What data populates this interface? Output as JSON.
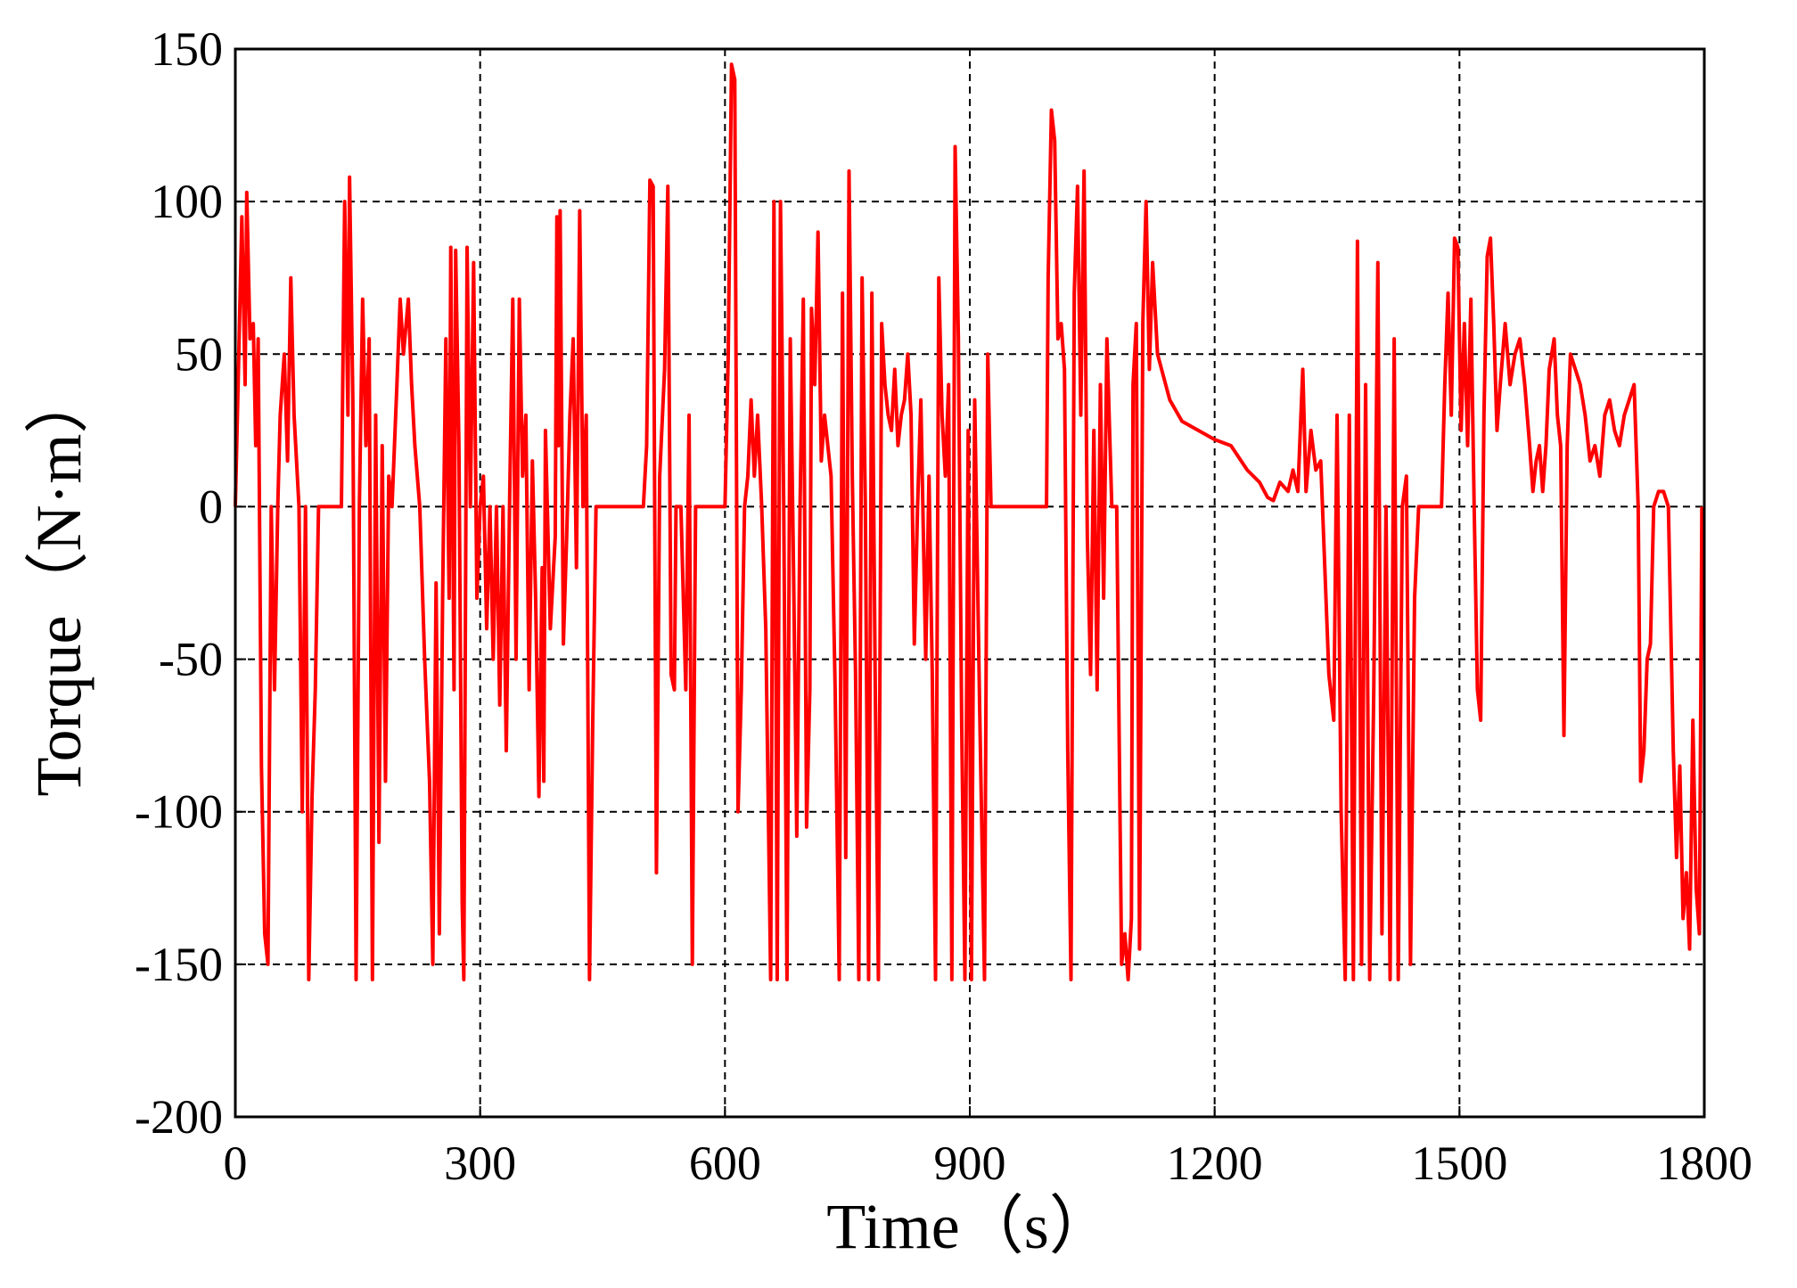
{
  "chart_data": {
    "type": "line",
    "xlabel": "Time（s）",
    "ylabel": "Torque（N·m）",
    "xlim": [
      0,
      1800
    ],
    "xticks": [
      0,
      300,
      600,
      900,
      1200,
      1500,
      1800
    ],
    "ylim": [
      -200,
      150
    ],
    "yticks": [
      -200,
      -150,
      -100,
      -50,
      0,
      50,
      100,
      150
    ],
    "grid": true,
    "series": [
      {
        "color": "#ff0000",
        "x": [
          0,
          3,
          8,
          12,
          14,
          18,
          22,
          25,
          28,
          32,
          36,
          40,
          44,
          48,
          52,
          55,
          60,
          64,
          68,
          72,
          78,
          82,
          86,
          90,
          94,
          98,
          102,
          130,
          134,
          138,
          140,
          144,
          148,
          152,
          156,
          160,
          164,
          168,
          172,
          176,
          180,
          184,
          188,
          192,
          198,
          202,
          206,
          212,
          216,
          220,
          226,
          232,
          238,
          242,
          246,
          250,
          254,
          258,
          262,
          264,
          268,
          270,
          274,
          278,
          280,
          284,
          288,
          292,
          296,
          300,
          304,
          308,
          312,
          316,
          320,
          324,
          328,
          332,
          336,
          340,
          344,
          348,
          352,
          356,
          360,
          364,
          368,
          372,
          376,
          378,
          380,
          386,
          392,
          394,
          396,
          398,
          402,
          406,
          410,
          414,
          418,
          422,
          426,
          430,
          434,
          438,
          442,
          500,
          504,
          508,
          512,
          516,
          520,
          526,
          530,
          534,
          538,
          540,
          546,
          552,
          556,
          560,
          564,
          600,
          604,
          608,
          612,
          616,
          620,
          624,
          628,
          632,
          636,
          640,
          645,
          650,
          656,
          660,
          664,
          668,
          672,
          676,
          680,
          684,
          688,
          692,
          696,
          700,
          704,
          706,
          710,
          714,
          718,
          722,
          730,
          735,
          740,
          744,
          748,
          752,
          756,
          760,
          764,
          768,
          772,
          776,
          780,
          784,
          788,
          792,
          796,
          800,
          804,
          808,
          812,
          816,
          820,
          824,
          828,
          832,
          836,
          840,
          846,
          850,
          854,
          858,
          862,
          866,
          870,
          874,
          878,
          882,
          886,
          890,
          894,
          898,
          902,
          906,
          912,
          918,
          922,
          926,
          994,
          996,
          1000,
          1004,
          1008,
          1012,
          1016,
          1020,
          1024,
          1028,
          1032,
          1036,
          1040,
          1044,
          1048,
          1052,
          1056,
          1060,
          1064,
          1068,
          1074,
          1080,
          1086,
          1090,
          1094,
          1098,
          1100,
          1104,
          1108,
          1112,
          1116,
          1120,
          1124,
          1130,
          1145,
          1160,
          1180,
          1200,
          1220,
          1240,
          1255,
          1265,
          1272,
          1280,
          1290,
          1296,
          1302,
          1308,
          1312,
          1318,
          1324,
          1330,
          1340,
          1346,
          1350,
          1355,
          1360,
          1365,
          1370,
          1375,
          1380,
          1385,
          1390,
          1395,
          1400,
          1405,
          1410,
          1415,
          1420,
          1425,
          1430,
          1435,
          1440,
          1445,
          1450,
          1478,
          1482,
          1486,
          1490,
          1494,
          1498,
          1502,
          1506,
          1510,
          1514,
          1518,
          1522,
          1526,
          1530,
          1534,
          1538,
          1542,
          1546,
          1550,
          1556,
          1562,
          1568,
          1574,
          1580,
          1586,
          1590,
          1594,
          1598,
          1602,
          1606,
          1610,
          1616,
          1620,
          1624,
          1628,
          1632,
          1636,
          1642,
          1648,
          1654,
          1660,
          1666,
          1672,
          1678,
          1684,
          1690,
          1696,
          1702,
          1708,
          1714,
          1719,
          1722,
          1726,
          1730,
          1734,
          1738,
          1744,
          1750,
          1756,
          1762,
          1766,
          1770,
          1774,
          1778,
          1782,
          1786,
          1790,
          1794,
          1797
        ],
        "values": [
          0,
          35,
          95,
          40,
          103,
          55,
          60,
          20,
          55,
          -85,
          -140,
          -150,
          0,
          -60,
          0,
          30,
          50,
          15,
          75,
          30,
          0,
          -100,
          0,
          -155,
          -95,
          -60,
          0,
          0,
          100,
          30,
          108,
          35,
          -155,
          0,
          68,
          20,
          55,
          -155,
          30,
          -110,
          20,
          -90,
          10,
          0,
          40,
          68,
          50,
          68,
          40,
          20,
          0,
          -50,
          -90,
          -150,
          -25,
          -140,
          -30,
          55,
          -30,
          85,
          -60,
          84,
          20,
          -130,
          -155,
          85,
          0,
          80,
          -30,
          0,
          10,
          -40,
          0,
          -50,
          0,
          -65,
          0,
          -80,
          0,
          68,
          -50,
          68,
          10,
          30,
          -60,
          15,
          -30,
          -95,
          -20,
          -90,
          25,
          -40,
          -10,
          95,
          20,
          97,
          -45,
          -10,
          30,
          55,
          -20,
          97,
          0,
          30,
          -155,
          -70,
          0,
          0,
          20,
          107,
          105,
          -120,
          10,
          45,
          105,
          -55,
          -60,
          0,
          0,
          -60,
          30,
          -150,
          0,
          0,
          50,
          145,
          140,
          -100,
          -60,
          0,
          10,
          35,
          10,
          30,
          0,
          -40,
          -155,
          100,
          -155,
          100,
          0,
          -155,
          55,
          -20,
          -108,
          0,
          68,
          -105,
          -60,
          65,
          40,
          90,
          15,
          30,
          10,
          -60,
          -155,
          70,
          -115,
          110,
          10,
          -55,
          -155,
          75,
          0,
          -155,
          70,
          -55,
          -155,
          60,
          40,
          30,
          25,
          45,
          20,
          30,
          35,
          50,
          30,
          -45,
          0,
          35,
          -50,
          10,
          -55,
          -155,
          75,
          30,
          10,
          40,
          -155,
          118,
          55,
          -70,
          -155,
          25,
          -155,
          35,
          -65,
          -155,
          50,
          0,
          0,
          75,
          130,
          120,
          55,
          60,
          45,
          -80,
          -155,
          70,
          105,
          30,
          110,
          -10,
          -55,
          25,
          -60,
          40,
          -30,
          55,
          0,
          0,
          -150,
          -140,
          -155,
          -135,
          40,
          60,
          -145,
          60,
          100,
          45,
          80,
          50,
          35,
          28,
          25,
          22,
          20,
          12,
          8,
          3,
          2,
          8,
          5,
          12,
          5,
          45,
          5,
          25,
          12,
          15,
          -55,
          -70,
          30,
          -100,
          -155,
          30,
          -155,
          87,
          -150,
          40,
          -155,
          -60,
          80,
          -140,
          0,
          -155,
          55,
          -155,
          0,
          10,
          -150,
          -30,
          0,
          0,
          40,
          70,
          30,
          88,
          85,
          25,
          60,
          20,
          68,
          0,
          -60,
          -70,
          30,
          82,
          88,
          60,
          25,
          40,
          60,
          40,
          50,
          55,
          40,
          20,
          5,
          15,
          20,
          5,
          20,
          45,
          55,
          30,
          20,
          -75,
          20,
          50,
          45,
          40,
          30,
          15,
          20,
          10,
          30,
          35,
          25,
          20,
          30,
          35,
          40,
          0,
          -90,
          -80,
          -50,
          -45,
          0,
          5,
          5,
          0,
          -80,
          -115,
          -85,
          -135,
          -120,
          -145,
          -70,
          -125,
          -140,
          0
        ]
      }
    ]
  }
}
